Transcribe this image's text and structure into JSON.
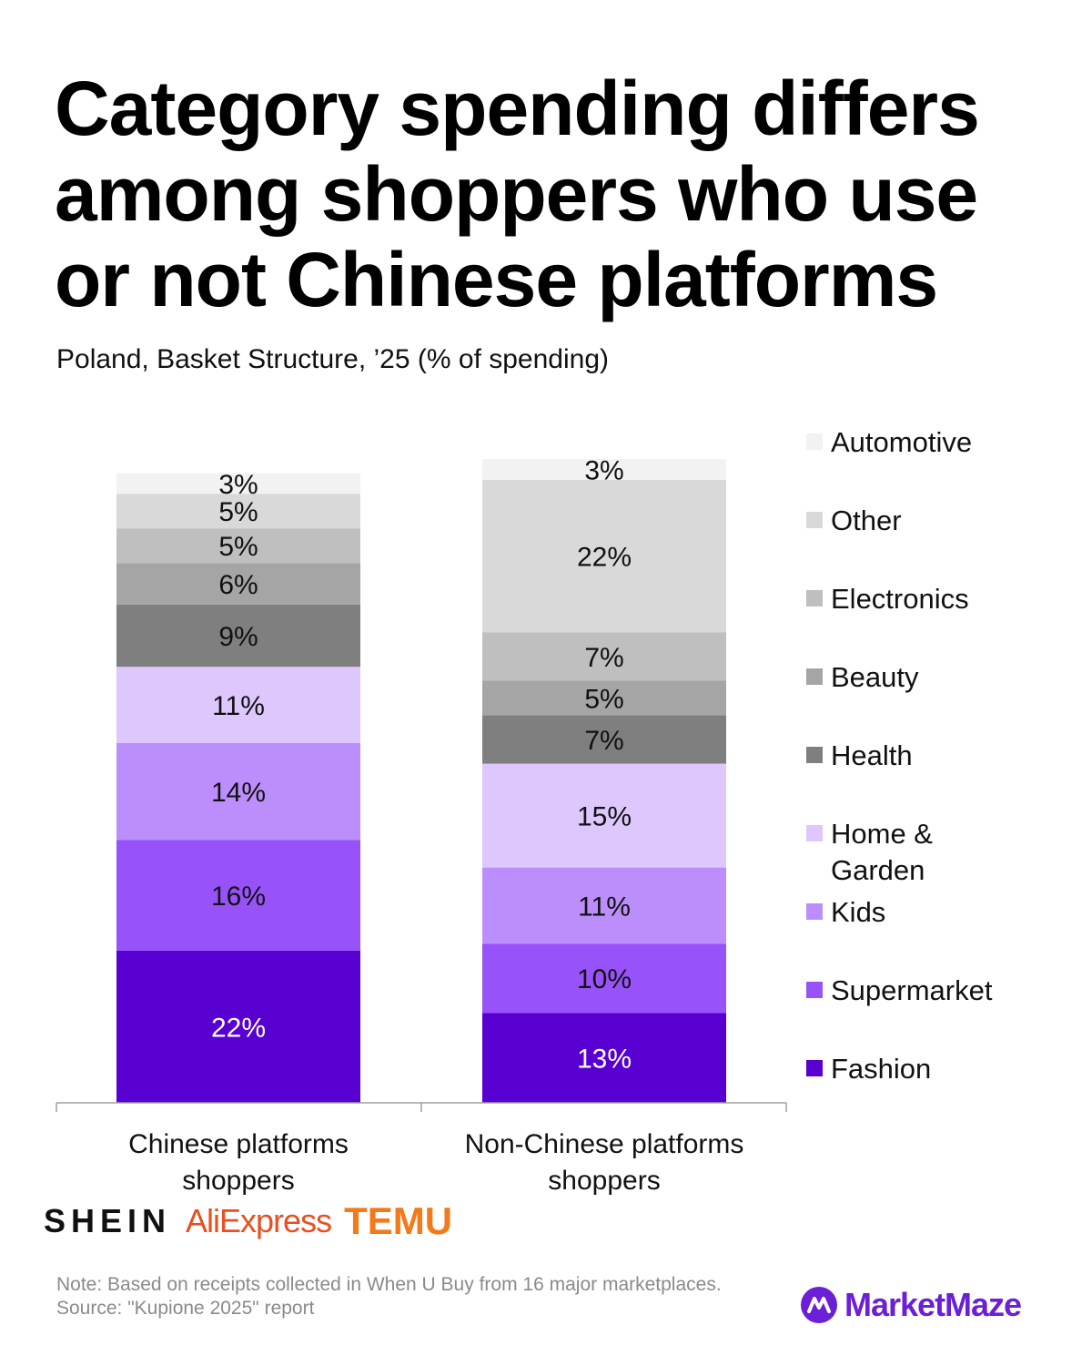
{
  "title": "Category spending differs among shoppers who use or not Chinese platforms",
  "subtitle": "Poland, Basket Structure, ’25 (% of spending)",
  "chart_data": {
    "type": "bar",
    "stacked": true,
    "orientation": "vertical",
    "categories": [
      "Chinese platforms shoppers",
      "Non-Chinese platforms shoppers"
    ],
    "category_lines": [
      [
        "Chinese platforms",
        "shoppers"
      ],
      [
        "Non-Chinese platforms",
        "shoppers"
      ]
    ],
    "series": [
      {
        "name": "Fashion",
        "color": "#5700d1",
        "label_color": "#ffffff",
        "values": [
          22,
          13
        ]
      },
      {
        "name": "Supermarket",
        "color": "#9752fa",
        "label_color": "#111111",
        "values": [
          16,
          10
        ]
      },
      {
        "name": "Kids",
        "color": "#bc8efc",
        "label_color": "#111111",
        "values": [
          14,
          11
        ]
      },
      {
        "name": "Home & Garden",
        "color": "#ddc7fd",
        "label_color": "#111111",
        "values": [
          11,
          15
        ]
      },
      {
        "name": "Health",
        "color": "#7f7f7f",
        "label_color": "#111111",
        "values": [
          9,
          7
        ]
      },
      {
        "name": "Beauty",
        "color": "#a5a5a5",
        "label_color": "#111111",
        "values": [
          6,
          5
        ]
      },
      {
        "name": "Electronics",
        "color": "#bfbfbf",
        "label_color": "#111111",
        "values": [
          5,
          7
        ]
      },
      {
        "name": "Other",
        "color": "#d9d9d9",
        "label_color": "#111111",
        "values": [
          5,
          22
        ]
      },
      {
        "name": "Automotive",
        "color": "#f2f2f2",
        "label_color": "#111111",
        "values": [
          3,
          3
        ]
      }
    ],
    "value_suffix": "%",
    "legend_position": "right",
    "legend_order": "top-to-bottom reversed (Automotive first)",
    "grid": false
  },
  "logos": {
    "shein": "SHEIN",
    "aliexpress": "AliExpress",
    "temu": "TEMU"
  },
  "footnote": {
    "note": "Note: Based on receipts collected in When U Buy from 16 major marketplaces.",
    "source": "Source: \"Kupione 2025\" report"
  },
  "brand": {
    "name": "MarketMaze",
    "color": "#6b1fd6"
  }
}
